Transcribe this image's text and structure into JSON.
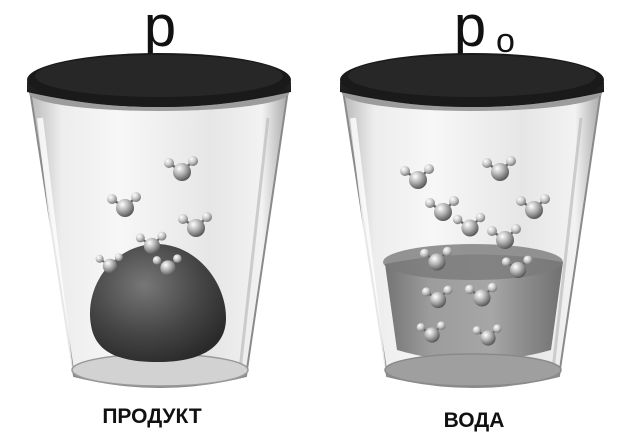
{
  "symbols": {
    "left": "p",
    "right_base": "p",
    "right_sub": "o"
  },
  "labels": {
    "left": "ПРОДУКТ",
    "right": "ВОДА"
  },
  "molecules": {
    "left": [
      {
        "ox": 182,
        "oy": 172,
        "s": 1.0
      },
      {
        "ox": 125,
        "oy": 208,
        "s": 1.0
      },
      {
        "ox": 196,
        "oy": 228,
        "s": 1.0
      },
      {
        "ox": 152,
        "oy": 246,
        "s": 0.9
      },
      {
        "ox": 110,
        "oy": 266,
        "s": 0.8
      },
      {
        "ox": 168,
        "oy": 268,
        "s": 0.85
      }
    ],
    "right": [
      {
        "ox": 418,
        "oy": 180,
        "s": 1.0
      },
      {
        "ox": 500,
        "oy": 172,
        "s": 1.0
      },
      {
        "ox": 443,
        "oy": 212,
        "s": 1.0
      },
      {
        "ox": 534,
        "oy": 210,
        "s": 1.0
      },
      {
        "ox": 470,
        "oy": 228,
        "s": 0.95
      },
      {
        "ox": 505,
        "oy": 240,
        "s": 1.0
      },
      {
        "ox": 437,
        "oy": 262,
        "s": 0.95
      },
      {
        "ox": 518,
        "oy": 270,
        "s": 0.9
      },
      {
        "ox": 438,
        "oy": 300,
        "s": 0.9
      },
      {
        "ox": 482,
        "oy": 298,
        "s": 0.95
      },
      {
        "ox": 432,
        "oy": 335,
        "s": 0.85
      },
      {
        "ox": 488,
        "oy": 338,
        "s": 0.85
      }
    ]
  },
  "colors": {
    "rim": "#333333",
    "glass_edge": "#8a8a8a",
    "blob": "#4a4a4a",
    "water": "#6e6e6e",
    "atom": "#9a9a9a"
  }
}
